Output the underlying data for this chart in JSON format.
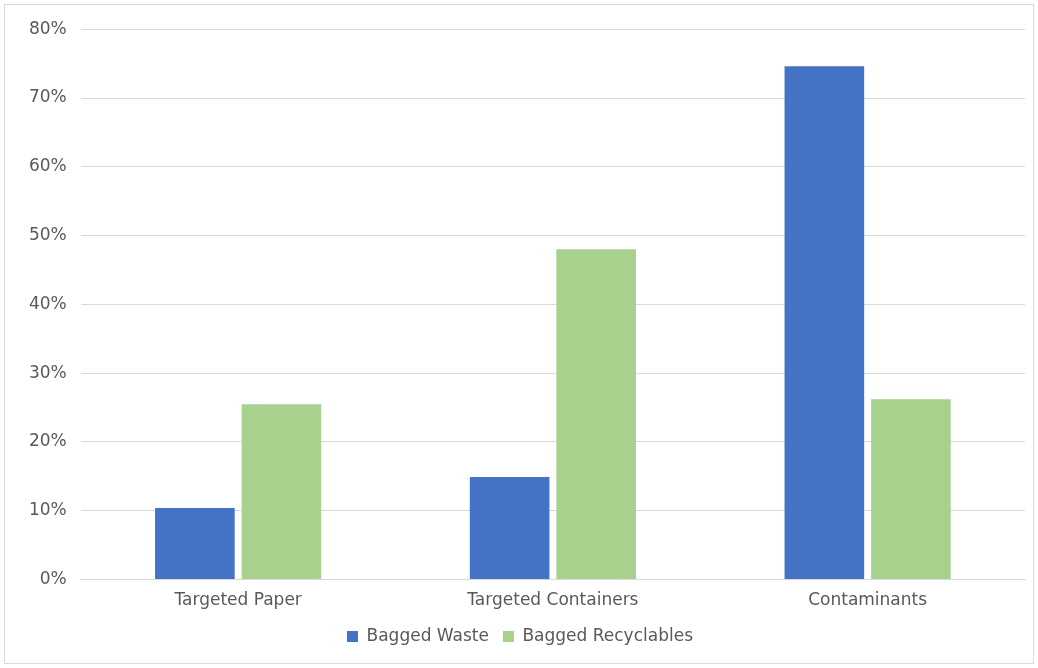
{
  "chart_data": {
    "type": "bar",
    "categories": [
      "Targeted Paper",
      "Targeted Containers",
      "Contaminants"
    ],
    "series": [
      {
        "name": "Bagged Waste",
        "color": "#4472c4",
        "values": [
          10.4,
          14.9,
          74.6
        ]
      },
      {
        "name": "Bagged Recyclables",
        "color": "#a9d18e",
        "values": [
          25.5,
          48.0,
          26.2
        ]
      }
    ],
    "ylim": [
      0,
      80
    ],
    "yticks": [
      {
        "value": 0,
        "label": "0%"
      },
      {
        "value": 10,
        "label": "10%"
      },
      {
        "value": 20,
        "label": "20%"
      },
      {
        "value": 30,
        "label": "30%"
      },
      {
        "value": 40,
        "label": "40%"
      },
      {
        "value": 50,
        "label": "50%"
      },
      {
        "value": 60,
        "label": "60%"
      },
      {
        "value": 70,
        "label": "70%"
      },
      {
        "value": 80,
        "label": "80%"
      }
    ],
    "grid": "y",
    "legend": "bottom"
  }
}
